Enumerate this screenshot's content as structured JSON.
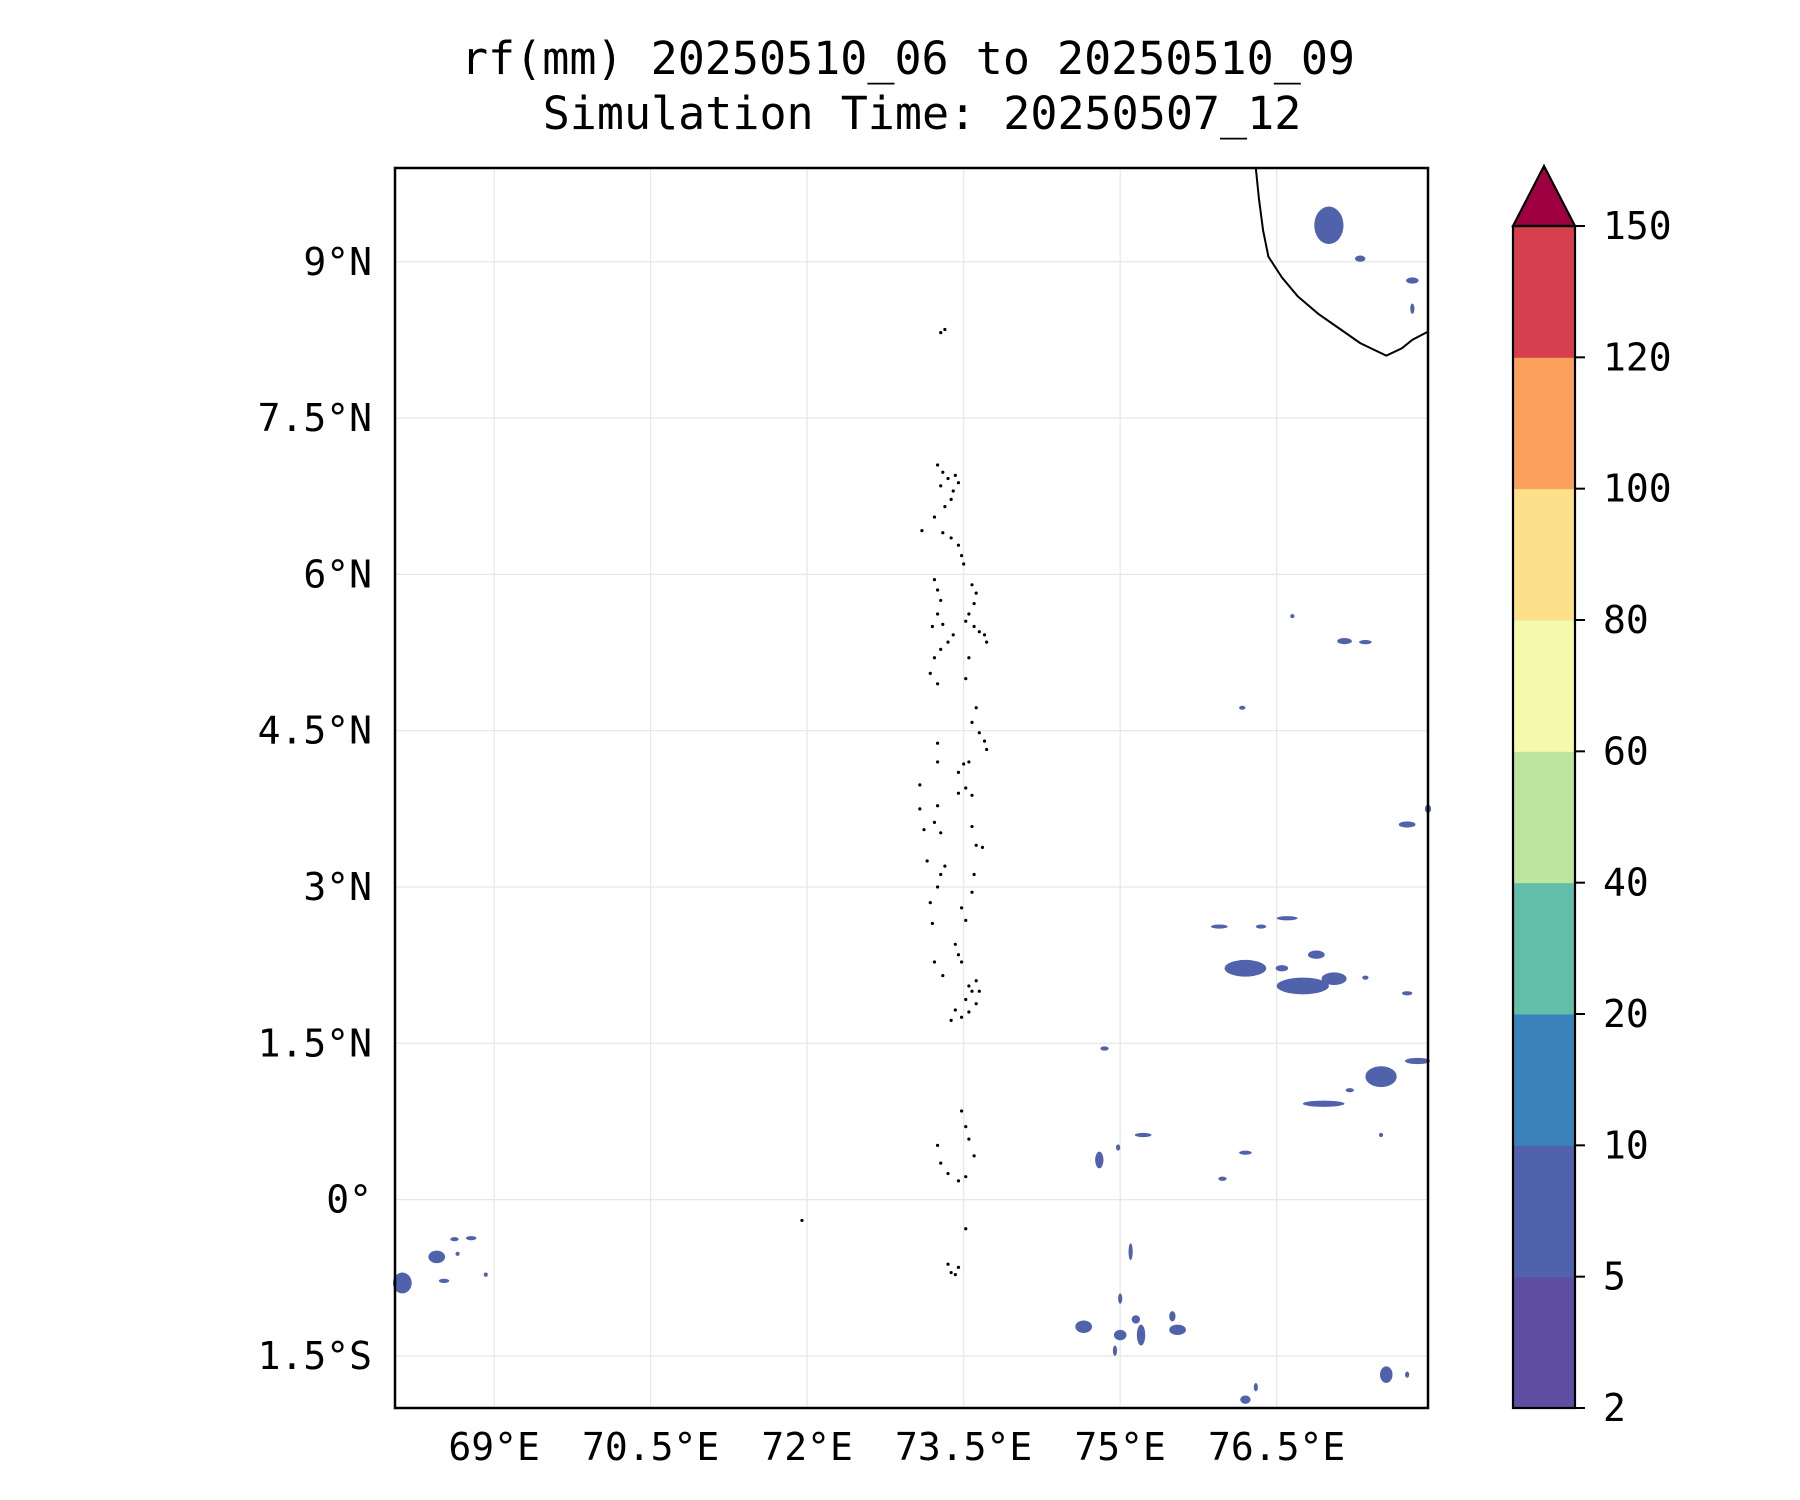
{
  "title": {
    "line1": "rf(mm) 20250510_06 to 20250510_09",
    "line2": "Simulation Time: 20250507_12"
  },
  "map": {
    "lon_range": [
      68.05,
      77.95
    ],
    "lat_range": [
      -2.0,
      9.9
    ],
    "lon_ticks": [
      {
        "value": 69.0,
        "label": "69°E"
      },
      {
        "value": 70.5,
        "label": "70.5°E"
      },
      {
        "value": 72.0,
        "label": "72°E"
      },
      {
        "value": 73.5,
        "label": "73.5°E"
      },
      {
        "value": 75.0,
        "label": "75°E"
      },
      {
        "value": 76.5,
        "label": "76.5°E"
      }
    ],
    "lat_ticks": [
      {
        "value": 9.0,
        "label": "9°N"
      },
      {
        "value": 7.5,
        "label": "7.5°N"
      },
      {
        "value": 6.0,
        "label": "6°N"
      },
      {
        "value": 4.5,
        "label": "4.5°N"
      },
      {
        "value": 3.0,
        "label": "3°N"
      },
      {
        "value": 1.5,
        "label": "1.5°N"
      },
      {
        "value": 0.0,
        "label": "0°"
      },
      {
        "value": -1.5,
        "label": "1.5°S"
      }
    ],
    "gridlines": true,
    "coastline_color": "#000000",
    "gridline_color": "#e6e6e6",
    "india_coast": [
      [
        76.3,
        9.9
      ],
      [
        76.33,
        9.6
      ],
      [
        76.37,
        9.3
      ],
      [
        76.42,
        9.05
      ],
      [
        76.55,
        8.85
      ],
      [
        76.7,
        8.67
      ],
      [
        76.9,
        8.5
      ],
      [
        77.1,
        8.36
      ],
      [
        77.3,
        8.22
      ],
      [
        77.55,
        8.1
      ],
      [
        77.7,
        8.17
      ],
      [
        77.8,
        8.25
      ],
      [
        77.95,
        8.33
      ]
    ],
    "island_dots": [
      [
        73.28,
        8.32
      ],
      [
        73.32,
        8.35
      ],
      [
        73.25,
        7.05
      ],
      [
        73.3,
        6.98
      ],
      [
        73.35,
        6.92
      ],
      [
        73.28,
        6.85
      ],
      [
        73.42,
        6.95
      ],
      [
        73.45,
        6.88
      ],
      [
        73.4,
        6.8
      ],
      [
        73.38,
        6.72
      ],
      [
        73.32,
        6.65
      ],
      [
        73.22,
        6.55
      ],
      [
        73.1,
        6.42
      ],
      [
        73.3,
        6.4
      ],
      [
        73.38,
        6.35
      ],
      [
        73.45,
        6.28
      ],
      [
        73.48,
        6.18
      ],
      [
        73.5,
        6.1
      ],
      [
        73.22,
        5.95
      ],
      [
        73.25,
        5.85
      ],
      [
        73.28,
        5.75
      ],
      [
        73.25,
        5.62
      ],
      [
        73.3,
        5.52
      ],
      [
        73.2,
        5.5
      ],
      [
        73.4,
        5.42
      ],
      [
        73.35,
        5.35
      ],
      [
        73.28,
        5.28
      ],
      [
        73.22,
        5.2
      ],
      [
        73.18,
        5.05
      ],
      [
        73.25,
        4.95
      ],
      [
        73.58,
        5.9
      ],
      [
        73.62,
        5.82
      ],
      [
        73.6,
        5.72
      ],
      [
        73.55,
        5.62
      ],
      [
        73.52,
        5.55
      ],
      [
        73.6,
        5.5
      ],
      [
        73.65,
        5.45
      ],
      [
        73.7,
        5.42
      ],
      [
        73.72,
        5.35
      ],
      [
        73.55,
        5.2
      ],
      [
        73.52,
        5.0
      ],
      [
        73.62,
        4.72
      ],
      [
        73.58,
        4.58
      ],
      [
        73.65,
        4.48
      ],
      [
        73.7,
        4.4
      ],
      [
        73.72,
        4.32
      ],
      [
        73.55,
        4.2
      ],
      [
        73.5,
        4.18
      ],
      [
        73.45,
        4.1
      ],
      [
        73.25,
        4.38
      ],
      [
        73.25,
        4.2
      ],
      [
        73.52,
        3.95
      ],
      [
        73.45,
        3.9
      ],
      [
        73.58,
        3.88
      ],
      [
        73.08,
        3.98
      ],
      [
        73.08,
        3.75
      ],
      [
        73.25,
        3.78
      ],
      [
        73.22,
        3.62
      ],
      [
        73.28,
        3.52
      ],
      [
        73.12,
        3.55
      ],
      [
        73.58,
        3.58
      ],
      [
        73.62,
        3.4
      ],
      [
        73.68,
        3.38
      ],
      [
        73.15,
        3.25
      ],
      [
        73.32,
        3.2
      ],
      [
        73.28,
        3.12
      ],
      [
        73.25,
        3.0
      ],
      [
        73.6,
        3.12
      ],
      [
        73.58,
        2.95
      ],
      [
        73.48,
        2.8
      ],
      [
        73.52,
        2.68
      ],
      [
        73.18,
        2.85
      ],
      [
        73.2,
        2.65
      ],
      [
        73.42,
        2.45
      ],
      [
        73.45,
        2.35
      ],
      [
        73.48,
        2.28
      ],
      [
        73.22,
        2.28
      ],
      [
        73.3,
        2.15
      ],
      [
        73.55,
        2.05
      ],
      [
        73.58,
        2.0
      ],
      [
        73.52,
        1.92
      ],
      [
        73.42,
        1.82
      ],
      [
        73.38,
        1.72
      ],
      [
        73.62,
        2.1
      ],
      [
        73.65,
        2.0
      ],
      [
        73.62,
        1.88
      ],
      [
        73.55,
        1.8
      ],
      [
        73.48,
        1.75
      ],
      [
        71.95,
        -0.2
      ],
      [
        73.48,
        0.85
      ],
      [
        73.52,
        0.7
      ],
      [
        73.55,
        0.58
      ],
      [
        73.25,
        0.52
      ],
      [
        73.28,
        0.35
      ],
      [
        73.35,
        0.25
      ],
      [
        73.45,
        0.18
      ],
      [
        73.52,
        0.22
      ],
      [
        73.6,
        0.42
      ],
      [
        73.52,
        -0.28
      ],
      [
        73.35,
        -0.62
      ],
      [
        73.38,
        -0.7
      ],
      [
        73.42,
        -0.72
      ],
      [
        73.45,
        -0.65
      ]
    ],
    "rain_cells": [
      {
        "lon": 77.0,
        "lat": 9.35,
        "rx": 0.14,
        "ry": 0.18,
        "level": 1
      },
      {
        "lon": 77.3,
        "lat": 9.03,
        "rx": 0.05,
        "ry": 0.03,
        "level": 1
      },
      {
        "lon": 77.8,
        "lat": 8.82,
        "rx": 0.06,
        "ry": 0.03,
        "level": 1
      },
      {
        "lon": 77.8,
        "lat": 8.55,
        "rx": 0.02,
        "ry": 0.05,
        "level": 1
      },
      {
        "lon": 77.15,
        "lat": 5.36,
        "rx": 0.07,
        "ry": 0.03,
        "level": 1
      },
      {
        "lon": 77.35,
        "lat": 5.35,
        "rx": 0.06,
        "ry": 0.02,
        "level": 1
      },
      {
        "lon": 76.65,
        "lat": 5.6,
        "rx": 0.02,
        "ry": 0.01,
        "level": 1
      },
      {
        "lon": 76.17,
        "lat": 4.72,
        "rx": 0.03,
        "ry": 0.01,
        "level": 1
      },
      {
        "lon": 77.75,
        "lat": 3.6,
        "rx": 0.08,
        "ry": 0.03,
        "level": 1
      },
      {
        "lon": 77.95,
        "lat": 3.75,
        "rx": 0.03,
        "ry": 0.04,
        "level": 1
      },
      {
        "lon": 75.95,
        "lat": 2.62,
        "rx": 0.08,
        "ry": 0.02,
        "level": 1
      },
      {
        "lon": 76.35,
        "lat": 2.62,
        "rx": 0.05,
        "ry": 0.02,
        "level": 1
      },
      {
        "lon": 76.6,
        "lat": 2.7,
        "rx": 0.1,
        "ry": 0.02,
        "level": 1
      },
      {
        "lon": 76.2,
        "lat": 2.22,
        "rx": 0.2,
        "ry": 0.08,
        "level": 1
      },
      {
        "lon": 76.55,
        "lat": 2.22,
        "rx": 0.06,
        "ry": 0.03,
        "level": 1
      },
      {
        "lon": 76.88,
        "lat": 2.35,
        "rx": 0.08,
        "ry": 0.04,
        "level": 1
      },
      {
        "lon": 76.75,
        "lat": 2.05,
        "rx": 0.25,
        "ry": 0.08,
        "level": 1
      },
      {
        "lon": 77.05,
        "lat": 2.12,
        "rx": 0.12,
        "ry": 0.06,
        "level": 1
      },
      {
        "lon": 77.35,
        "lat": 2.13,
        "rx": 0.03,
        "ry": 0.02,
        "level": 1
      },
      {
        "lon": 77.75,
        "lat": 1.98,
        "rx": 0.05,
        "ry": 0.02,
        "level": 1
      },
      {
        "lon": 74.85,
        "lat": 1.45,
        "rx": 0.04,
        "ry": 0.02,
        "level": 1
      },
      {
        "lon": 77.5,
        "lat": 1.18,
        "rx": 0.15,
        "ry": 0.1,
        "level": 1
      },
      {
        "lon": 77.85,
        "lat": 1.33,
        "rx": 0.12,
        "ry": 0.03,
        "level": 1
      },
      {
        "lon": 76.95,
        "lat": 0.92,
        "rx": 0.2,
        "ry": 0.03,
        "level": 1
      },
      {
        "lon": 77.2,
        "lat": 1.05,
        "rx": 0.04,
        "ry": 0.02,
        "level": 1
      },
      {
        "lon": 77.5,
        "lat": 0.62,
        "rx": 0.02,
        "ry": 0.02,
        "level": 1
      },
      {
        "lon": 74.8,
        "lat": 0.38,
        "rx": 0.04,
        "ry": 0.08,
        "level": 1
      },
      {
        "lon": 75.22,
        "lat": 0.62,
        "rx": 0.08,
        "ry": 0.02,
        "level": 1
      },
      {
        "lon": 74.98,
        "lat": 0.5,
        "rx": 0.02,
        "ry": 0.03,
        "level": 1
      },
      {
        "lon": 76.2,
        "lat": 0.45,
        "rx": 0.06,
        "ry": 0.02,
        "level": 1
      },
      {
        "lon": 75.98,
        "lat": 0.2,
        "rx": 0.04,
        "ry": 0.02,
        "level": 1
      },
      {
        "lon": 75.1,
        "lat": -0.5,
        "rx": 0.02,
        "ry": 0.08,
        "level": 1
      },
      {
        "lon": 75.0,
        "lat": -0.95,
        "rx": 0.02,
        "ry": 0.05,
        "level": 1
      },
      {
        "lon": 75.15,
        "lat": -1.15,
        "rx": 0.04,
        "ry": 0.04,
        "level": 1
      },
      {
        "lon": 75.0,
        "lat": -1.3,
        "rx": 0.06,
        "ry": 0.05,
        "level": 1
      },
      {
        "lon": 75.2,
        "lat": -1.3,
        "rx": 0.04,
        "ry": 0.1,
        "level": 1
      },
      {
        "lon": 74.65,
        "lat": -1.22,
        "rx": 0.08,
        "ry": 0.06,
        "level": 1
      },
      {
        "lon": 74.95,
        "lat": -1.45,
        "rx": 0.02,
        "ry": 0.05,
        "level": 1
      },
      {
        "lon": 75.5,
        "lat": -1.12,
        "rx": 0.03,
        "ry": 0.05,
        "level": 1
      },
      {
        "lon": 75.55,
        "lat": -1.25,
        "rx": 0.08,
        "ry": 0.05,
        "level": 1
      },
      {
        "lon": 76.3,
        "lat": -1.8,
        "rx": 0.02,
        "ry": 0.04,
        "level": 1
      },
      {
        "lon": 76.2,
        "lat": -1.92,
        "rx": 0.05,
        "ry": 0.04,
        "level": 1
      },
      {
        "lon": 77.55,
        "lat": -1.68,
        "rx": 0.06,
        "ry": 0.08,
        "level": 1
      },
      {
        "lon": 77.75,
        "lat": -1.68,
        "rx": 0.02,
        "ry": 0.03,
        "level": 1
      },
      {
        "lon": 68.12,
        "lat": -0.8,
        "rx": 0.09,
        "ry": 0.1,
        "level": 1
      },
      {
        "lon": 68.45,
        "lat": -0.55,
        "rx": 0.08,
        "ry": 0.06,
        "level": 1
      },
      {
        "lon": 68.62,
        "lat": -0.38,
        "rx": 0.04,
        "ry": 0.02,
        "level": 1
      },
      {
        "lon": 68.78,
        "lat": -0.37,
        "rx": 0.05,
        "ry": 0.02,
        "level": 1
      },
      {
        "lon": 68.65,
        "lat": -0.52,
        "rx": 0.02,
        "ry": 0.02,
        "level": 1
      },
      {
        "lon": 68.52,
        "lat": -0.78,
        "rx": 0.05,
        "ry": 0.02,
        "level": 1
      },
      {
        "lon": 68.92,
        "lat": -0.72,
        "rx": 0.01,
        "ry": 0.02,
        "level": 1
      }
    ]
  },
  "colorbar": {
    "levels": [
      {
        "value": 2,
        "label": "2"
      },
      {
        "value": 5,
        "label": "5"
      },
      {
        "value": 10,
        "label": "10"
      },
      {
        "value": 20,
        "label": "20"
      },
      {
        "value": 40,
        "label": "40"
      },
      {
        "value": 60,
        "label": "60"
      },
      {
        "value": 80,
        "label": "80"
      },
      {
        "value": 100,
        "label": "100"
      },
      {
        "value": 120,
        "label": "120"
      },
      {
        "value": 150,
        "label": "150"
      }
    ],
    "colors": [
      "#5e4fa2",
      "#4f62ab",
      "#3b82bb",
      "#62bda9",
      "#bde5a0",
      "#f4faad",
      "#fde08a",
      "#f9a15d",
      "#d6404e"
    ],
    "extend_color": "#9e0142",
    "extend": "max"
  }
}
